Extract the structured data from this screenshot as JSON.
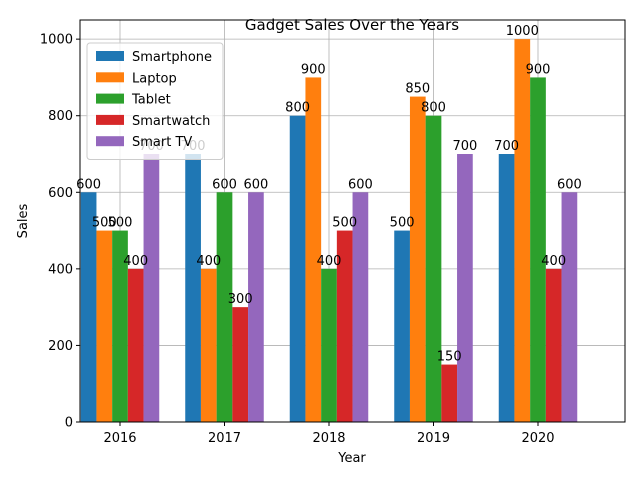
{
  "chart_data": {
    "type": "bar",
    "title": "Gadget Sales Over the Years",
    "xlabel": "Year",
    "ylabel": "Sales",
    "categories": [
      "2016",
      "2017",
      "2018",
      "2019",
      "2020"
    ],
    "ylim": [
      0,
      1050
    ],
    "yticks": [
      0,
      200,
      400,
      600,
      800,
      1000
    ],
    "grid": true,
    "legend_position": "top-left",
    "series": [
      {
        "name": "Smartphone",
        "color": "#1f77b4",
        "values": [
          600,
          700,
          800,
          500,
          700
        ]
      },
      {
        "name": "Laptop",
        "color": "#ff7f0e",
        "values": [
          500,
          400,
          900,
          850,
          1000
        ]
      },
      {
        "name": "Tablet",
        "color": "#2ca02c",
        "values": [
          500,
          600,
          400,
          800,
          900
        ]
      },
      {
        "name": "Smartwatch",
        "color": "#d62728",
        "values": [
          400,
          300,
          500,
          150,
          400
        ]
      },
      {
        "name": "Smart TV",
        "color": "#9467bd",
        "values": [
          700,
          600,
          600,
          700,
          600
        ]
      }
    ]
  }
}
